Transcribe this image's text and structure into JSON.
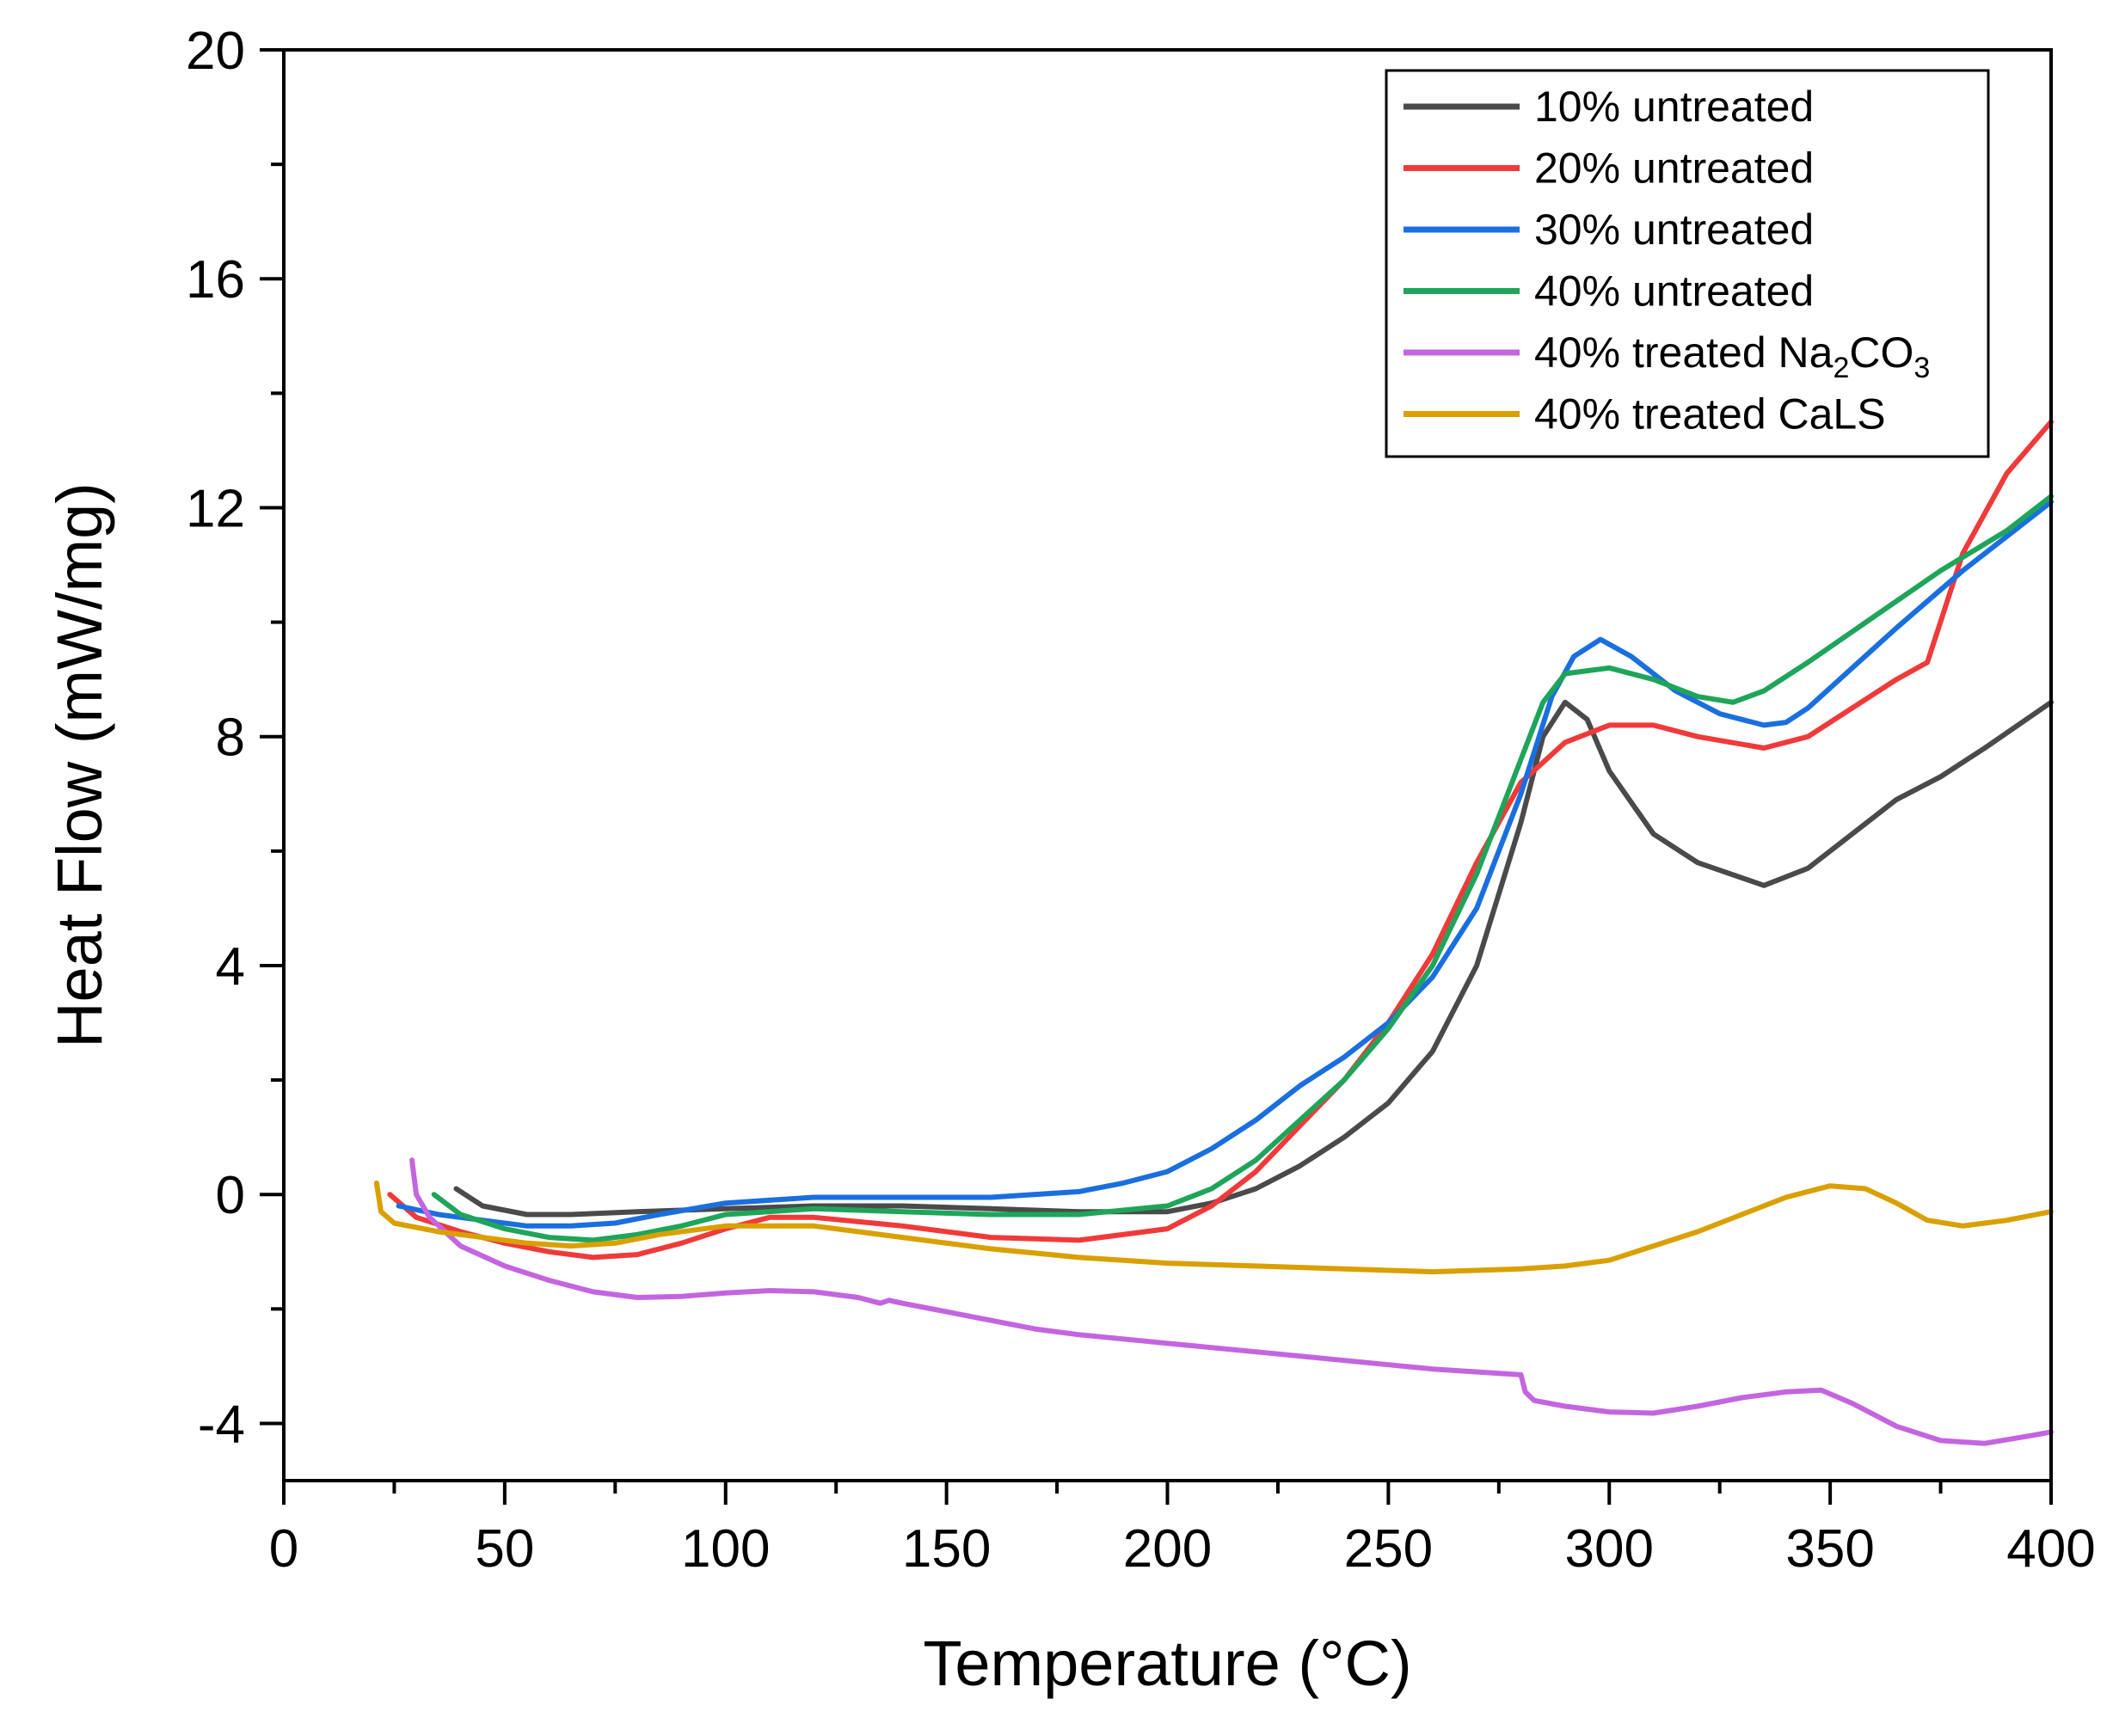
{
  "chart_data": {
    "type": "line",
    "xlabel": "Temperature (°C)",
    "ylabel": "Heat Flow (mW/mg)",
    "xlim": [
      0,
      400
    ],
    "ylim": [
      -5,
      20
    ],
    "xticks": [
      0,
      50,
      100,
      150,
      200,
      250,
      300,
      350,
      400
    ],
    "yticks": [
      -4,
      0,
      4,
      8,
      12,
      16,
      20
    ],
    "yticks_minor": [
      -2,
      2,
      6,
      10,
      14,
      18
    ],
    "legend_position": "top-right",
    "series": [
      {
        "name": "10% untreated",
        "label_main": "10% untreated",
        "label_sub": "",
        "label_tail": "",
        "color": "#4a4a4a",
        "x": [
          39,
          45,
          55,
          65,
          80,
          100,
          120,
          140,
          160,
          180,
          200,
          210,
          220,
          230,
          240,
          250,
          260,
          270,
          280,
          285,
          290,
          295,
          300,
          310,
          320,
          335,
          345,
          355,
          365,
          375,
          385,
          400
        ],
        "y": [
          0.1,
          -0.2,
          -0.35,
          -0.35,
          -0.3,
          -0.25,
          -0.2,
          -0.2,
          -0.25,
          -0.3,
          -0.3,
          -0.15,
          0.1,
          0.5,
          1.0,
          1.6,
          2.5,
          4.0,
          6.5,
          8.0,
          8.6,
          8.3,
          7.4,
          6.3,
          5.8,
          5.4,
          5.7,
          6.3,
          6.9,
          7.3,
          7.8,
          8.6
        ]
      },
      {
        "name": "20% untreated",
        "label_main": "20% untreated",
        "label_sub": "",
        "label_tail": "",
        "color": "#f03a3a",
        "x": [
          24,
          30,
          40,
          50,
          60,
          70,
          80,
          90,
          100,
          110,
          120,
          140,
          160,
          180,
          200,
          210,
          220,
          230,
          240,
          250,
          260,
          270,
          280,
          290,
          300,
          310,
          320,
          335,
          345,
          355,
          365,
          372,
          380,
          390,
          400
        ],
        "y": [
          0.0,
          -0.4,
          -0.65,
          -0.85,
          -1.0,
          -1.1,
          -1.05,
          -0.85,
          -0.6,
          -0.4,
          -0.4,
          -0.55,
          -0.75,
          -0.8,
          -0.6,
          -0.2,
          0.4,
          1.2,
          2.0,
          3.0,
          4.2,
          5.8,
          7.2,
          7.9,
          8.2,
          8.2,
          8.0,
          7.8,
          8.0,
          8.5,
          9.0,
          9.3,
          11.2,
          12.6,
          13.5
        ]
      },
      {
        "name": "30% untreated",
        "label_main": "30% untreated",
        "label_sub": "",
        "label_tail": "",
        "color": "#1a6fe0",
        "x": [
          26,
          35,
          45,
          55,
          65,
          75,
          85,
          100,
          120,
          140,
          160,
          180,
          190,
          200,
          210,
          220,
          230,
          240,
          250,
          260,
          270,
          280,
          287,
          292,
          298,
          305,
          315,
          325,
          335,
          340,
          345,
          355,
          365,
          380,
          400
        ],
        "y": [
          -0.2,
          -0.35,
          -0.45,
          -0.55,
          -0.55,
          -0.5,
          -0.35,
          -0.15,
          -0.05,
          -0.05,
          -0.05,
          0.05,
          0.2,
          0.4,
          0.8,
          1.3,
          1.9,
          2.4,
          3.0,
          3.8,
          5.0,
          7.0,
          8.7,
          9.4,
          9.7,
          9.4,
          8.8,
          8.4,
          8.2,
          8.25,
          8.5,
          9.2,
          9.9,
          10.9,
          12.1
        ]
      },
      {
        "name": "40% untreated",
        "label_main": "40% untreated",
        "label_sub": "",
        "label_tail": "",
        "color": "#1ea55a",
        "x": [
          34,
          40,
          50,
          60,
          70,
          80,
          90,
          100,
          120,
          140,
          160,
          180,
          200,
          210,
          220,
          230,
          240,
          250,
          260,
          270,
          280,
          285,
          290,
          300,
          310,
          320,
          328,
          335,
          345,
          360,
          375,
          390,
          400
        ],
        "y": [
          0.0,
          -0.35,
          -0.6,
          -0.75,
          -0.8,
          -0.7,
          -0.55,
          -0.35,
          -0.25,
          -0.3,
          -0.35,
          -0.35,
          -0.2,
          0.1,
          0.6,
          1.3,
          2.0,
          2.9,
          4.0,
          5.6,
          7.6,
          8.6,
          9.1,
          9.2,
          9.0,
          8.7,
          8.6,
          8.8,
          9.3,
          10.1,
          10.9,
          11.6,
          12.2
        ]
      },
      {
        "name": "40% treated Na2CO3",
        "label_main": "40% treated Na",
        "label_sub": "2",
        "label_tail": "CO",
        "label_sub2": "3",
        "color": "#c465e0",
        "x": [
          29,
          30,
          33,
          40,
          50,
          60,
          70,
          80,
          90,
          100,
          110,
          120,
          130,
          135,
          137,
          140,
          150,
          160,
          170,
          180,
          200,
          220,
          240,
          260,
          280,
          281,
          283,
          290,
          300,
          310,
          320,
          330,
          340,
          348,
          355,
          365,
          375,
          385,
          395,
          400
        ],
        "y": [
          0.6,
          0.0,
          -0.4,
          -0.9,
          -1.25,
          -1.5,
          -1.7,
          -1.8,
          -1.78,
          -1.72,
          -1.68,
          -1.7,
          -1.8,
          -1.9,
          -1.85,
          -1.9,
          -2.05,
          -2.2,
          -2.35,
          -2.45,
          -2.6,
          -2.75,
          -2.9,
          -3.05,
          -3.15,
          -3.45,
          -3.6,
          -3.7,
          -3.8,
          -3.82,
          -3.7,
          -3.55,
          -3.45,
          -3.42,
          -3.65,
          -4.05,
          -4.3,
          -4.35,
          -4.22,
          -4.15
        ]
      },
      {
        "name": "40% treated CaLS",
        "label_main": "40% treated CaLS",
        "label_sub": "",
        "label_tail": "",
        "color": "#d9a000",
        "x": [
          21,
          22,
          25,
          35,
          45,
          55,
          65,
          75,
          85,
          100,
          120,
          140,
          160,
          180,
          200,
          220,
          240,
          260,
          280,
          290,
          300,
          310,
          320,
          330,
          340,
          350,
          358,
          365,
          372,
          380,
          390,
          400
        ],
        "y": [
          0.2,
          -0.3,
          -0.5,
          -0.65,
          -0.75,
          -0.85,
          -0.9,
          -0.85,
          -0.7,
          -0.55,
          -0.55,
          -0.75,
          -0.95,
          -1.1,
          -1.2,
          -1.25,
          -1.3,
          -1.35,
          -1.3,
          -1.25,
          -1.15,
          -0.9,
          -0.65,
          -0.35,
          -0.05,
          0.15,
          0.1,
          -0.15,
          -0.45,
          -0.55,
          -0.45,
          -0.3
        ]
      }
    ]
  }
}
